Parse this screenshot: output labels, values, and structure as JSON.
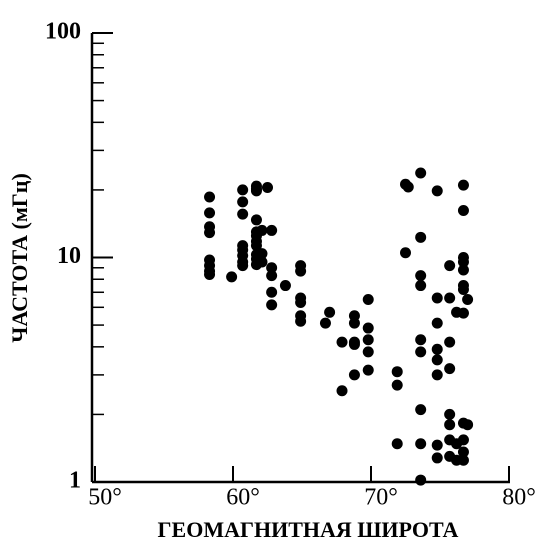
{
  "chart_data": {
    "type": "scatter",
    "x_label": "ГЕОМАГНИТНАЯ ШИРОТА",
    "y_label": "ЧАСТОТА (мГц)",
    "log_y": true,
    "color": "#000000",
    "xlim": [
      50,
      80
    ],
    "xticks": [
      {
        "value": 50,
        "label": "50°"
      },
      {
        "value": 60,
        "label": "60°"
      },
      {
        "value": 70,
        "label": "70°"
      },
      {
        "value": 80,
        "label": "80°"
      }
    ],
    "ylim": [
      1,
      100
    ],
    "yticks": [
      1,
      10,
      100
    ],
    "x": [
      58.3,
      58.3,
      58.3,
      58.3,
      58.3,
      58.3,
      58.3,
      58.3,
      59.9,
      60.7,
      60.7,
      60.7,
      60.7,
      60.7,
      60.7,
      60.7,
      60.7,
      61.7,
      61.7,
      61.7,
      61.7,
      61.7,
      61.7,
      61.7,
      61.7,
      61.7,
      61.7,
      61.7,
      62.1,
      62.1,
      62.1,
      62.5,
      62.8,
      62.8,
      62.8,
      62.8,
      62.8,
      63.8,
      64.9,
      64.9,
      64.9,
      64.9,
      64.9,
      64.9,
      66.7,
      67.0,
      67.9,
      67.9,
      68.8,
      68.8,
      68.8,
      68.8,
      68.8,
      69.8,
      69.8,
      69.8,
      69.8,
      69.8,
      71.9,
      71.9,
      71.9,
      72.5,
      72.5,
      72.7,
      73.6,
      73.6,
      73.6,
      73.6,
      73.6,
      73.6,
      73.6,
      73.6,
      73.6,
      74.8,
      74.8,
      74.8,
      74.8,
      74.8,
      74.8,
      74.8,
      74.8,
      75.7,
      75.7,
      75.7,
      75.7,
      75.7,
      75.7,
      75.7,
      75.7,
      76.2,
      76.2,
      76.2,
      76.7,
      76.7,
      76.7,
      76.7,
      76.7,
      76.7,
      76.7,
      76.7,
      76.7,
      76.7,
      76.7,
      76.7,
      77.0,
      77.0
    ],
    "values": [
      18.6,
      15.8,
      13.7,
      12.9,
      9.75,
      9.2,
      8.7,
      8.4,
      8.2,
      20,
      17.7,
      15.6,
      11.3,
      10.8,
      10.2,
      9.55,
      9.2,
      20.8,
      20.2,
      19.8,
      14.7,
      13,
      12.5,
      11.8,
      11.3,
      10.3,
      9.85,
      9.3,
      13.2,
      10.4,
      9.55,
      20.5,
      13.2,
      9.0,
      8.3,
      7.0,
      6.15,
      7.5,
      9.2,
      8.7,
      6.6,
      6.3,
      5.5,
      5.2,
      5.1,
      5.7,
      4.2,
      2.55,
      5.5,
      5.1,
      4.2,
      4.1,
      3.0,
      6.5,
      4.85,
      4.3,
      3.8,
      3.15,
      3.1,
      2.7,
      1.48,
      10.5,
      21.2,
      20.6,
      23.8,
      12.3,
      8.3,
      7.5,
      4.3,
      3.8,
      2.1,
      1.48,
      1.02,
      19.8,
      6.6,
      5.1,
      3.9,
      3.5,
      3.0,
      1.46,
      1.28,
      9.2,
      6.6,
      4.2,
      3.2,
      2.0,
      1.8,
      1.54,
      1.3,
      5.7,
      1.48,
      1.25,
      21,
      16.2,
      10.0,
      9.55,
      8.8,
      7.5,
      7.2,
      5.65,
      1.83,
      1.54,
      1.36,
      1.25,
      6.5,
      1.8
    ]
  }
}
